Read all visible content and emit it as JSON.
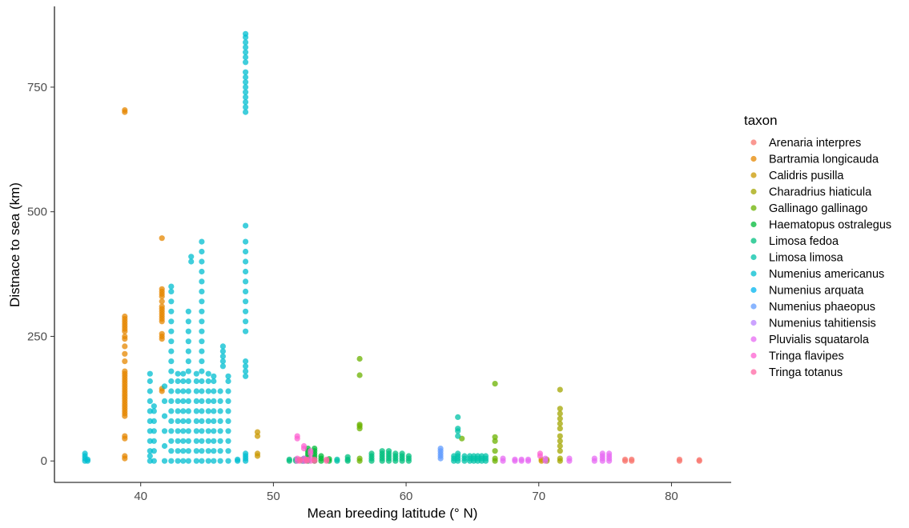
{
  "chart_data": {
    "type": "scatter",
    "title": "",
    "xlabel": "Mean breeding latitude (° N)",
    "ylabel": "Distnace to sea (km)",
    "xlim": [
      33.5,
      84.5
    ],
    "ylim": [
      -43,
      912
    ],
    "xticks": [
      40,
      50,
      60,
      70,
      80
    ],
    "yticks": [
      0,
      250,
      500,
      750
    ],
    "grid": false,
    "legend_position": "right",
    "legend_title": "taxon",
    "series": [
      {
        "name": "Arenaria interpres",
        "color": "#F8766D",
        "columns": [
          {
            "x": 76.5,
            "ys": [
              0,
              3
            ]
          },
          {
            "x": 77.0,
            "ys": [
              0,
              3
            ]
          },
          {
            "x": 80.6,
            "ys": [
              0,
              3
            ]
          },
          {
            "x": 82.1,
            "ys": [
              0,
              2
            ]
          }
        ]
      },
      {
        "name": "Bartramia longicauda",
        "color": "#E58700",
        "columns": [
          {
            "x": 38.8,
            "ys": [
              5,
              10,
              45,
              50,
              90,
              95,
              100,
              105,
              110,
              115,
              120,
              125,
              130,
              135,
              140,
              145,
              150,
              155,
              160,
              165,
              170,
              175,
              180,
              200,
              215,
              230,
              245,
              250,
              260,
              265,
              270,
              275,
              280,
              285,
              290,
              700,
              704
            ]
          },
          {
            "x": 41.6,
            "ys": [
              140,
              145,
              245,
              250,
              255,
              280,
              285,
              290,
              295,
              300,
              305,
              310,
              320,
              330,
              335,
              340,
              345,
              447
            ]
          }
        ]
      },
      {
        "name": "Calidris pusilla",
        "color": "#C99800",
        "columns": [
          {
            "x": 48.8,
            "ys": [
              10,
              15,
              50,
              58
            ]
          },
          {
            "x": 70.2,
            "ys": [
              0,
              3
            ]
          }
        ]
      },
      {
        "name": "Charadrius hiaticula",
        "color": "#A3A500",
        "columns": [
          {
            "x": 71.6,
            "ys": [
              0,
              5,
              20,
              30,
              40,
              50,
              65,
              75,
              85,
              95,
              105,
              143
            ]
          },
          {
            "x": 70.6,
            "ys": [
              0,
              3
            ]
          }
        ]
      },
      {
        "name": "Gallinago gallinago",
        "color": "#6BB100",
        "columns": [
          {
            "x": 56.5,
            "ys": [
              0,
              5,
              65,
              70,
              73,
              172,
              205
            ]
          },
          {
            "x": 66.7,
            "ys": [
              0,
              5,
              20,
              40,
              48,
              155
            ]
          },
          {
            "x": 64.2,
            "ys": [
              45
            ]
          }
        ]
      },
      {
        "name": "Haematopus ostralegus",
        "color": "#00BA38",
        "columns": [
          {
            "x": 52.6,
            "ys": [
              0,
              5,
              10,
              15,
              20,
              25
            ]
          },
          {
            "x": 53.1,
            "ys": [
              0,
              5,
              10,
              15,
              20,
              25
            ]
          },
          {
            "x": 53.6,
            "ys": [
              0,
              5,
              10
            ]
          },
          {
            "x": 54.2,
            "ys": [
              0,
              4
            ]
          }
        ]
      },
      {
        "name": "Limosa fedoa",
        "color": "#00BF7D",
        "columns": [
          {
            "x": 51.2,
            "ys": [
              0,
              3
            ]
          },
          {
            "x": 51.7,
            "ys": [
              0,
              3
            ]
          },
          {
            "x": 52.2,
            "ys": [
              0,
              3
            ]
          },
          {
            "x": 55.6,
            "ys": [
              0,
              3,
              8
            ]
          },
          {
            "x": 57.4,
            "ys": [
              0,
              5,
              10,
              15
            ]
          },
          {
            "x": 58.2,
            "ys": [
              0,
              5,
              10,
              15,
              20
            ]
          },
          {
            "x": 58.7,
            "ys": [
              0,
              5,
              10,
              15,
              20
            ]
          },
          {
            "x": 59.2,
            "ys": [
              0,
              5,
              10,
              15
            ]
          },
          {
            "x": 59.7,
            "ys": [
              0,
              5,
              10,
              15
            ]
          },
          {
            "x": 60.2,
            "ys": [
              0,
              5,
              10
            ]
          }
        ]
      },
      {
        "name": "Limosa limosa",
        "color": "#00C1A7",
        "columns": [
          {
            "x": 54.8,
            "ys": [
              0,
              3
            ]
          },
          {
            "x": 63.6,
            "ys": [
              0,
              5,
              10
            ]
          },
          {
            "x": 63.9,
            "ys": [
              0,
              5,
              10,
              15,
              50,
              60,
              65,
              88
            ]
          },
          {
            "x": 64.4,
            "ys": [
              0,
              5,
              10
            ]
          },
          {
            "x": 64.8,
            "ys": [
              0,
              5,
              10
            ]
          },
          {
            "x": 65.1,
            "ys": [
              0,
              5,
              10
            ]
          },
          {
            "x": 65.4,
            "ys": [
              0,
              5,
              10
            ]
          },
          {
            "x": 65.7,
            "ys": [
              0,
              5,
              10
            ]
          },
          {
            "x": 66.0,
            "ys": [
              0,
              5,
              10
            ]
          }
        ]
      },
      {
        "name": "Numenius americanus",
        "color": "#00BDD0",
        "columns": [
          {
            "x": 35.8,
            "ys": [
              0,
              5,
              10,
              15
            ]
          },
          {
            "x": 36.0,
            "ys": [
              0,
              3
            ]
          },
          {
            "x": 40.7,
            "ys": [
              0,
              10,
              20,
              40,
              60,
              80,
              100,
              120,
              140,
              160,
              175
            ]
          },
          {
            "x": 41.0,
            "ys": [
              0,
              20,
              40,
              60,
              80,
              100,
              110
            ]
          },
          {
            "x": 41.8,
            "ys": [
              0,
              30,
              60,
              90,
              120,
              150
            ]
          },
          {
            "x": 42.3,
            "ys": [
              0,
              20,
              40,
              60,
              80,
              100,
              120,
              140,
              160,
              180,
              200,
              220,
              240,
              260,
              280,
              300,
              320,
              340,
              350
            ]
          },
          {
            "x": 42.8,
            "ys": [
              0,
              20,
              40,
              60,
              80,
              100,
              120,
              140,
              160,
              175
            ]
          },
          {
            "x": 43.2,
            "ys": [
              0,
              20,
              40,
              60,
              80,
              100,
              120,
              140,
              160,
              175
            ]
          },
          {
            "x": 43.6,
            "ys": [
              0,
              20,
              40,
              60,
              80,
              100,
              120,
              140,
              160,
              180,
              200,
              220,
              240,
              260,
              280,
              300
            ]
          },
          {
            "x": 43.8,
            "ys": [
              400,
              410
            ]
          },
          {
            "x": 44.2,
            "ys": [
              0,
              20,
              40,
              60,
              80,
              100,
              120,
              140,
              160,
              175
            ]
          },
          {
            "x": 44.6,
            "ys": [
              0,
              20,
              40,
              60,
              80,
              100,
              120,
              140,
              160,
              180,
              200,
              220,
              240,
              260,
              280,
              300,
              320,
              340,
              360,
              380,
              400,
              420,
              440
            ]
          },
          {
            "x": 45.1,
            "ys": [
              0,
              20,
              40,
              60,
              80,
              100,
              120,
              140,
              160,
              175
            ]
          },
          {
            "x": 45.5,
            "ys": [
              0,
              20,
              40,
              60,
              80,
              100,
              120,
              140,
              160,
              170
            ]
          },
          {
            "x": 46.0,
            "ys": [
              0,
              20,
              40,
              60,
              80,
              100,
              120,
              140
            ]
          },
          {
            "x": 46.2,
            "ys": [
              190,
              200,
              210,
              220,
              230
            ]
          },
          {
            "x": 46.6,
            "ys": [
              0,
              20,
              40,
              60,
              80,
              100,
              120,
              140,
              160,
              170
            ]
          },
          {
            "x": 47.3,
            "ys": [
              0,
              3
            ]
          },
          {
            "x": 47.9,
            "ys": [
              0,
              5,
              10,
              15,
              170,
              180,
              190,
              200,
              260,
              280,
              300,
              320,
              340,
              360,
              380,
              400,
              420,
              440,
              472,
              700,
              710,
              720,
              730,
              740,
              750,
              760,
              770,
              780,
              800,
              810,
              820,
              830,
              840,
              850,
              857
            ]
          }
        ]
      },
      {
        "name": "Numenius arquata",
        "color": "#00B4EF",
        "columns": [
          {
            "x": 52.3,
            "ys": [
              0,
              5
            ]
          }
        ]
      },
      {
        "name": "Numenius phaeopus",
        "color": "#619CFF",
        "columns": [
          {
            "x": 62.6,
            "ys": [
              5,
              10,
              15,
              20,
              25
            ]
          }
        ]
      },
      {
        "name": "Numenius tahitiensis",
        "color": "#B983FF",
        "columns": [
          {
            "x": 52.5,
            "ys": [
              2
            ]
          }
        ]
      },
      {
        "name": "Pluvialis squatarola",
        "color": "#E76BF3",
        "columns": [
          {
            "x": 67.3,
            "ys": [
              0,
              5
            ]
          },
          {
            "x": 68.2,
            "ys": [
              0,
              3
            ]
          },
          {
            "x": 68.7,
            "ys": [
              0,
              3
            ]
          },
          {
            "x": 69.2,
            "ys": [
              0,
              3
            ]
          },
          {
            "x": 70.5,
            "ys": [
              0,
              5
            ]
          },
          {
            "x": 72.3,
            "ys": [
              0,
              5
            ]
          },
          {
            "x": 74.2,
            "ys": [
              0,
              5
            ]
          },
          {
            "x": 74.8,
            "ys": [
              0,
              5,
              10,
              15
            ]
          },
          {
            "x": 75.3,
            "ys": [
              0,
              5,
              10,
              15
            ]
          }
        ]
      },
      {
        "name": "Tringa flavipes",
        "color": "#FD61D1",
        "columns": [
          {
            "x": 51.8,
            "ys": [
              0,
              5,
              45,
              50
            ]
          },
          {
            "x": 52.3,
            "ys": [
              0,
              5,
              25,
              30
            ]
          },
          {
            "x": 52.8,
            "ys": [
              0,
              5,
              15,
              20
            ]
          },
          {
            "x": 70.1,
            "ys": [
              10,
              15
            ]
          }
        ]
      },
      {
        "name": "Tringa totanus",
        "color": "#FF67A4",
        "columns": [
          {
            "x": 52.0,
            "ys": [
              0,
              3
            ]
          },
          {
            "x": 52.5,
            "ys": [
              0,
              3
            ]
          },
          {
            "x": 53.1,
            "ys": [
              0,
              3
            ]
          },
          {
            "x": 54.0,
            "ys": [
              0,
              3
            ]
          }
        ]
      }
    ]
  }
}
